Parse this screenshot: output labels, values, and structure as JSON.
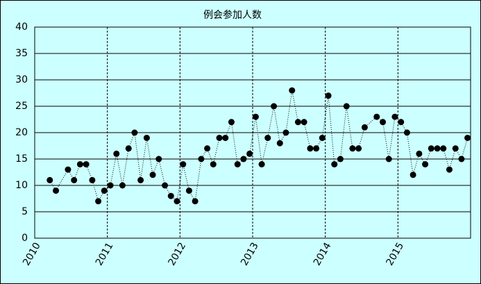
{
  "chart_data": {
    "type": "line",
    "title": "例会参加人数",
    "x": [
      2010.208,
      2010.292,
      2010.458,
      2010.542,
      2010.625,
      2010.708,
      2010.792,
      2010.875,
      2010.958,
      2011.042,
      2011.125,
      2011.208,
      2011.292,
      2011.375,
      2011.458,
      2011.542,
      2011.625,
      2011.708,
      2011.792,
      2011.875,
      2011.958,
      2012.042,
      2012.125,
      2012.208,
      2012.292,
      2012.375,
      2012.458,
      2012.542,
      2012.625,
      2012.708,
      2012.792,
      2012.875,
      2012.958,
      2013.042,
      2013.125,
      2013.208,
      2013.292,
      2013.375,
      2013.458,
      2013.542,
      2013.625,
      2013.708,
      2013.792,
      2013.875,
      2013.958,
      2014.042,
      2014.125,
      2014.208,
      2014.292,
      2014.375,
      2014.458,
      2014.542,
      2014.708,
      2014.792,
      2014.875,
      2014.958,
      2015.042,
      2015.125,
      2015.208,
      2015.292,
      2015.375,
      2015.458,
      2015.542,
      2015.625,
      2015.708,
      2015.792,
      2015.875,
      2015.958
    ],
    "series": [
      {
        "color": "#000000",
        "values": [
          11,
          9,
          13,
          11,
          14,
          14,
          11,
          7,
          9,
          10,
          16,
          10,
          17,
          20,
          11,
          19,
          12,
          15,
          10,
          8,
          7,
          14,
          9,
          7,
          15,
          17,
          14,
          19,
          19,
          22,
          14,
          15,
          16,
          23,
          14,
          19,
          25,
          18,
          20,
          28,
          22,
          22,
          17,
          17,
          19,
          27,
          14,
          15,
          25,
          17,
          17,
          21,
          23,
          22,
          15,
          23,
          22,
          20,
          12,
          16,
          14,
          17,
          17,
          17,
          13,
          17,
          15,
          19
        ]
      }
    ],
    "xlim": [
      2010,
      2016
    ],
    "xticks": [
      2010,
      2011,
      2012,
      2013,
      2014,
      2015
    ],
    "ylim": [
      0,
      40
    ],
    "yticks": [
      0,
      5,
      10,
      15,
      20,
      25,
      30,
      35,
      40
    ],
    "grid": true
  }
}
